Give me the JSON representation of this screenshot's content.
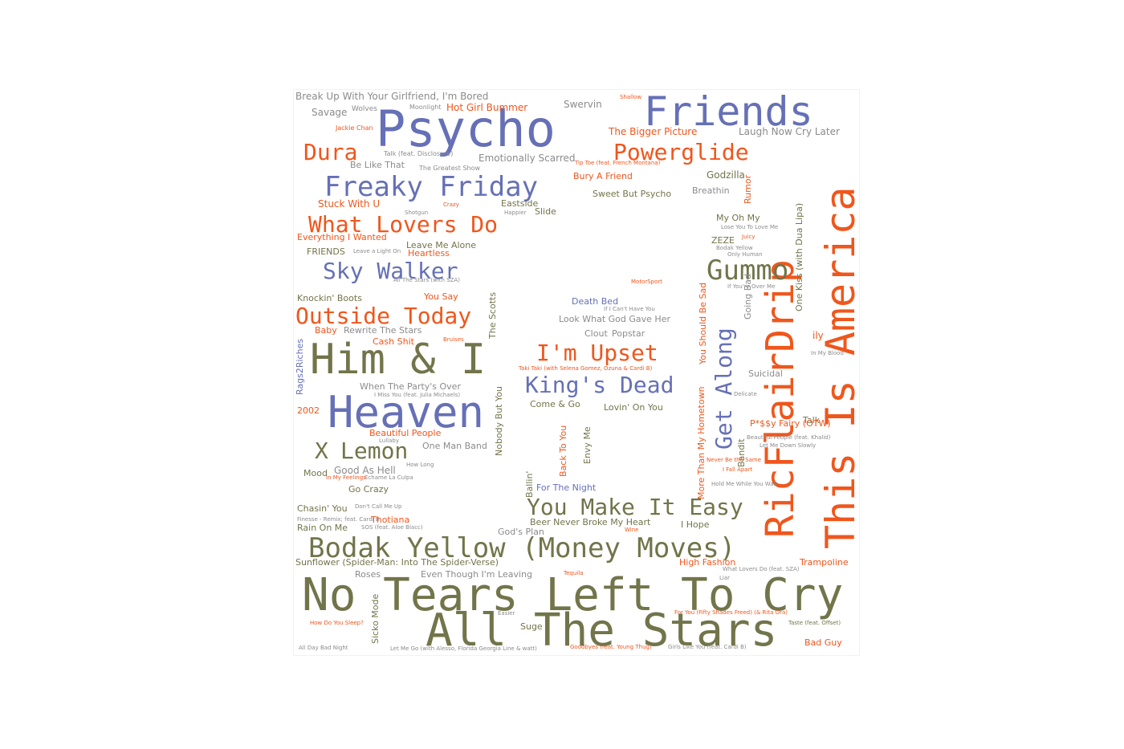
{
  "palette": {
    "orange": "#f0561c",
    "blue": "#6670b6",
    "olive": "#72744a",
    "gray": "#8b8b8b",
    "light_orange": "#f0855c"
  },
  "word_cloud": {
    "words": [
      {
        "text": "No Tears Left To Cry",
        "color": "olive"
      },
      {
        "text": "All The Stars",
        "color": "olive"
      },
      {
        "text": "Psycho",
        "color": "blue"
      },
      {
        "text": "Friends",
        "color": "blue"
      },
      {
        "text": "Heaven",
        "color": "blue"
      },
      {
        "text": "Him & I",
        "color": "olive"
      },
      {
        "text": "This Is America",
        "color": "orange"
      },
      {
        "text": "RicFlairDrip",
        "color": "orange"
      },
      {
        "text": "Bodak Yellow (Money Moves)",
        "color": "olive"
      },
      {
        "text": "Freaky Friday",
        "color": "blue"
      },
      {
        "text": "What Lovers Do",
        "color": "orange"
      },
      {
        "text": "Gummo",
        "color": "olive"
      },
      {
        "text": "Outside Today",
        "color": "orange"
      },
      {
        "text": "Sky Walker",
        "color": "blue"
      },
      {
        "text": "I'm Upset",
        "color": "orange"
      },
      {
        "text": "King's Dead",
        "color": "blue"
      },
      {
        "text": "You Make It Easy",
        "color": "olive"
      },
      {
        "text": "X",
        "color": "olive"
      },
      {
        "text": "Lemon",
        "color": "olive"
      },
      {
        "text": "Dura",
        "color": "orange"
      },
      {
        "text": "Powerglide",
        "color": "orange"
      },
      {
        "text": "Get Along",
        "color": "blue"
      },
      {
        "text": "Break Up With Your Girlfriend, I'm Bored",
        "color": "gray"
      },
      {
        "text": "Savage",
        "color": "gray"
      },
      {
        "text": "Wolves",
        "color": "gray"
      },
      {
        "text": "Moonlight",
        "color": "gray"
      },
      {
        "text": "Hot Girl Bummer",
        "color": "orange"
      },
      {
        "text": "Swervin",
        "color": "gray"
      },
      {
        "text": "The Bigger Picture",
        "color": "orange"
      },
      {
        "text": "Laugh Now Cry Later",
        "color": "gray"
      },
      {
        "text": "Jackie Chan",
        "color": "orange"
      },
      {
        "text": "Emotionally Scarred",
        "color": "gray"
      },
      {
        "text": "Talk (feat. Disclosure)",
        "color": "gray"
      },
      {
        "text": "Be Like That",
        "color": "gray"
      },
      {
        "text": "The Greatest Show",
        "color": "gray"
      },
      {
        "text": "Tip Toe (feat. French Montana)",
        "color": "orange"
      },
      {
        "text": "Bury A Friend",
        "color": "orange"
      },
      {
        "text": "Godzilla",
        "color": "olive"
      },
      {
        "text": "Sweet But Psycho",
        "color": "olive"
      },
      {
        "text": "Breathin",
        "color": "gray"
      },
      {
        "text": "Rumor",
        "color": "orange"
      },
      {
        "text": "Stuck With U",
        "color": "orange"
      },
      {
        "text": "Eastside",
        "color": "olive"
      },
      {
        "text": "Slide",
        "color": "olive"
      },
      {
        "text": "My Oh My",
        "color": "olive"
      },
      {
        "text": "Lose You To Love Me",
        "color": "gray"
      },
      {
        "text": "Everything I Wanted",
        "color": "orange"
      },
      {
        "text": "Leave Me Alone",
        "color": "olive"
      },
      {
        "text": "Heartless",
        "color": "orange"
      },
      {
        "text": "FRIENDS",
        "color": "olive"
      },
      {
        "text": "Leave a Light On",
        "color": "gray"
      },
      {
        "text": "ZEZE",
        "color": "olive"
      },
      {
        "text": "Juicy",
        "color": "orange"
      },
      {
        "text": "Bodak Yellow",
        "color": "gray"
      },
      {
        "text": "Only Human",
        "color": "gray"
      },
      {
        "text": "All The Stars (with SZA)",
        "color": "gray"
      },
      {
        "text": "You Say",
        "color": "orange"
      },
      {
        "text": "Knockin' Boots",
        "color": "olive"
      },
      {
        "text": "The Scotts",
        "color": "olive"
      },
      {
        "text": "MotorSport",
        "color": "orange"
      },
      {
        "text": "Death Bed",
        "color": "blue"
      },
      {
        "text": "If I Can't Have You",
        "color": "gray"
      },
      {
        "text": "You Should Be Sad",
        "color": "orange"
      },
      {
        "text": "If You're Over Me",
        "color": "gray"
      },
      {
        "text": "One Kiss (with Dua Lipa)",
        "color": "olive"
      },
      {
        "text": "Going Bad",
        "color": "gray"
      },
      {
        "text": "Baby",
        "color": "orange"
      },
      {
        "text": "Rewrite The Stars",
        "color": "gray"
      },
      {
        "text": "Look What God Gave Her",
        "color": "gray"
      },
      {
        "text": "Clout",
        "color": "gray"
      },
      {
        "text": "Popstar",
        "color": "gray"
      },
      {
        "text": "Cash Shit",
        "color": "orange"
      },
      {
        "text": "Bruises",
        "color": "orange"
      },
      {
        "text": "Rags2Riches",
        "color": "blue"
      },
      {
        "text": "ily",
        "color": "orange"
      },
      {
        "text": "In My Blood",
        "color": "gray"
      },
      {
        "text": "Taki Taki (with Selena Gomez, Ozuna & Cardi B)",
        "color": "orange"
      },
      {
        "text": "Suicidal",
        "color": "gray"
      },
      {
        "text": "When The Party's Over",
        "color": "gray"
      },
      {
        "text": "I Miss You (feat. Julia Michaels)",
        "color": "gray"
      },
      {
        "text": "Nobody But You",
        "color": "olive"
      },
      {
        "text": "Come & Go",
        "color": "olive"
      },
      {
        "text": "Lovin' On You",
        "color": "olive"
      },
      {
        "text": "Delicate",
        "color": "gray"
      },
      {
        "text": "Talk",
        "color": "olive"
      },
      {
        "text": "P*$$y Fairy (OTW)",
        "color": "orange"
      },
      {
        "text": "2002",
        "color": "orange"
      },
      {
        "text": "Beautiful People",
        "color": "orange"
      },
      {
        "text": "One Man Band",
        "color": "gray"
      },
      {
        "text": "Beautiful People (feat. Khalid)",
        "color": "gray"
      },
      {
        "text": "Let Me Down Slowly",
        "color": "gray"
      },
      {
        "text": "Lullaby",
        "color": "gray"
      },
      {
        "text": "Back To You",
        "color": "orange"
      },
      {
        "text": "Envy Me",
        "color": "olive"
      },
      {
        "text": "Bandit",
        "color": "olive"
      },
      {
        "text": "Never Be the Same",
        "color": "orange"
      },
      {
        "text": "I Fall Apart",
        "color": "orange"
      },
      {
        "text": "More Than My Hometown",
        "color": "orange"
      },
      {
        "text": "Mood",
        "color": "olive"
      },
      {
        "text": "Good As Hell",
        "color": "gray"
      },
      {
        "text": "How Long",
        "color": "gray"
      },
      {
        "text": "In My Feelings",
        "color": "orange"
      },
      {
        "text": "Echame La Culpa",
        "color": "gray"
      },
      {
        "text": "Go Crazy",
        "color": "olive"
      },
      {
        "text": "Ballin'",
        "color": "olive"
      },
      {
        "text": "For The Night",
        "color": "blue"
      },
      {
        "text": "Hold Me While You Wait",
        "color": "gray"
      },
      {
        "text": "Chasin' You",
        "color": "olive"
      },
      {
        "text": "Don't Call Me Up",
        "color": "gray"
      },
      {
        "text": "Finesse - Remix; feat. Cardi B",
        "color": "gray"
      },
      {
        "text": "Thotiana",
        "color": "orange"
      },
      {
        "text": "Rain On Me",
        "color": "olive"
      },
      {
        "text": "SOS (feat. Aloe Blacc)",
        "color": "gray"
      },
      {
        "text": "God's Plan",
        "color": "gray"
      },
      {
        "text": "Beer Never Broke My Heart",
        "color": "olive"
      },
      {
        "text": "I Hope",
        "color": "olive"
      },
      {
        "text": "Wine",
        "color": "orange"
      },
      {
        "text": "Sunflower (Spider-Man: Into The Spider-Verse)",
        "color": "olive"
      },
      {
        "text": "High Fashion",
        "color": "orange"
      },
      {
        "text": "Trampoline",
        "color": "orange"
      },
      {
        "text": "Roses",
        "color": "gray"
      },
      {
        "text": "Even Though I'm Leaving",
        "color": "gray"
      },
      {
        "text": "Tequila",
        "color": "orange"
      },
      {
        "text": "What Lovers Do (feat. SZA)",
        "color": "gray"
      },
      {
        "text": "Liar",
        "color": "gray"
      },
      {
        "text": "Sicko Mode",
        "color": "olive"
      },
      {
        "text": "Suge",
        "color": "olive"
      },
      {
        "text": "For You (Fifty Shades Freed) (& Rita Ora)",
        "color": "orange"
      },
      {
        "text": "Taste (feat. Offset)",
        "color": "olive"
      },
      {
        "text": "How Do You Sleep?",
        "color": "orange"
      },
      {
        "text": "Let Me Go (with Alesso, Florida Georgia Line & watt)",
        "color": "gray"
      },
      {
        "text": "Goodbyes (feat. Young Thug)",
        "color": "orange"
      },
      {
        "text": "Girls Like You (feat. Cardi B)",
        "color": "gray"
      },
      {
        "text": "Bad Guy",
        "color": "orange"
      },
      {
        "text": "All Day Bad Night",
        "color": "gray"
      },
      {
        "text": "Easier",
        "color": "gray"
      },
      {
        "text": "Shallow",
        "color": "orange"
      },
      {
        "text": "Happier",
        "color": "gray"
      },
      {
        "text": "Shotgun",
        "color": "gray"
      },
      {
        "text": "Crazy",
        "color": "orange"
      }
    ]
  }
}
